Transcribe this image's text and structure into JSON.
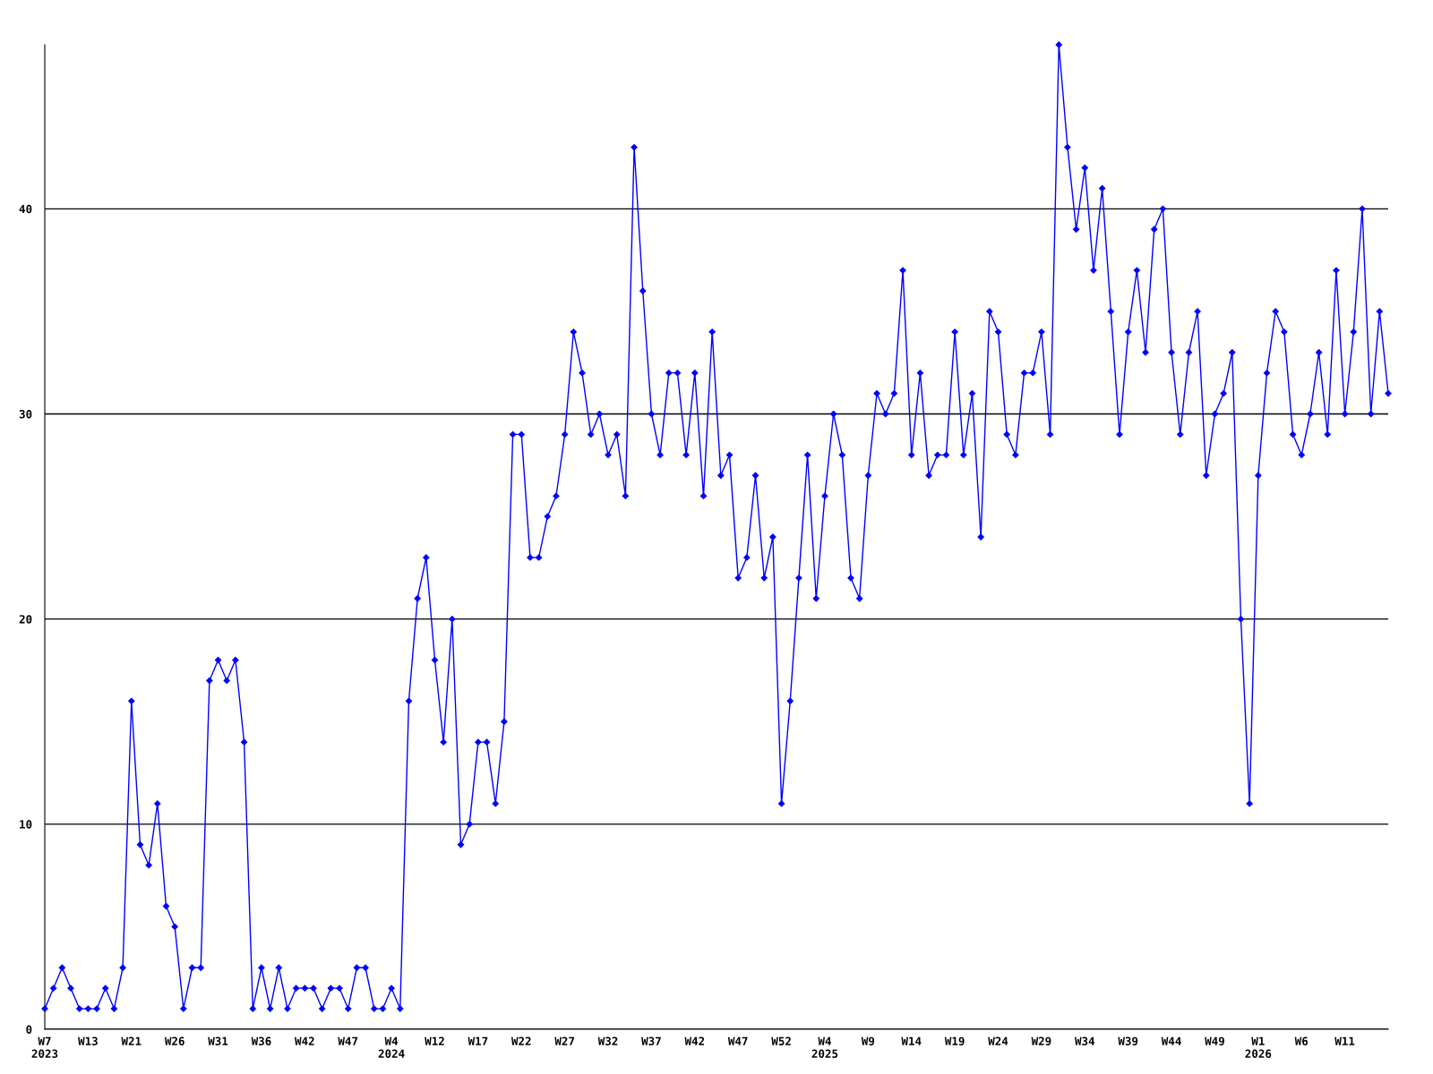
{
  "chart_data": {
    "type": "line",
    "categories": [
      "W7\n2023",
      null,
      null,
      null,
      null,
      "W13",
      null,
      null,
      null,
      null,
      "W21",
      null,
      null,
      null,
      null,
      "W26",
      null,
      null,
      null,
      null,
      "W31",
      null,
      null,
      null,
      null,
      "W36",
      null,
      null,
      null,
      null,
      "W42",
      null,
      null,
      null,
      null,
      "W47",
      null,
      null,
      null,
      null,
      "W4\n2024",
      null,
      null,
      null,
      null,
      "W12",
      null,
      null,
      null,
      null,
      "W17",
      null,
      null,
      null,
      null,
      "W22",
      null,
      null,
      null,
      null,
      "W27",
      null,
      null,
      null,
      null,
      "W32",
      null,
      null,
      null,
      null,
      "W37",
      null,
      null,
      null,
      null,
      "W42",
      null,
      null,
      null,
      null,
      "W47",
      null,
      null,
      null,
      null,
      "W52",
      null,
      null,
      null,
      null,
      "W4\n2025",
      null,
      null,
      null,
      null,
      "W9",
      null,
      null,
      null,
      null,
      "W14",
      null,
      null,
      null,
      null,
      "W19",
      null,
      null,
      null,
      null,
      "W24",
      null,
      null,
      null,
      null,
      "W29",
      null,
      null,
      null,
      null,
      "W34",
      null,
      null,
      null,
      null,
      "W39",
      null,
      null,
      null,
      null,
      "W44",
      null,
      null,
      null,
      null,
      "W49",
      null,
      null,
      null,
      null,
      "W1\n2026",
      null,
      null,
      null,
      null,
      "W6",
      null,
      null,
      null,
      null,
      "W11",
      null,
      null,
      null,
      null,
      null
    ],
    "series": [
      {
        "color": "#0000ff",
        "values": [
          1,
          2,
          3,
          2,
          1,
          1,
          1,
          2,
          1,
          3,
          16,
          9,
          8,
          11,
          6,
          5,
          1,
          3,
          3,
          17,
          18,
          17,
          18,
          14,
          1,
          3,
          1,
          3,
          1,
          2,
          2,
          2,
          1,
          2,
          2,
          1,
          3,
          3,
          1,
          1,
          2,
          1,
          16,
          21,
          23,
          18,
          14,
          20,
          9,
          10,
          14,
          14,
          11,
          15,
          29,
          29,
          23,
          23,
          25,
          26,
          29,
          34,
          32,
          29,
          30,
          28,
          29,
          26,
          43,
          36,
          30,
          28,
          32,
          32,
          28,
          32,
          26,
          34,
          27,
          28,
          22,
          23,
          27,
          22,
          24,
          11,
          16,
          22,
          28,
          21,
          26,
          30,
          28,
          22,
          21,
          27,
          31,
          30,
          31,
          37,
          28,
          32,
          27,
          28,
          28,
          34,
          28,
          31,
          24,
          35,
          34,
          29,
          28,
          32,
          32,
          34,
          29,
          48,
          43,
          39,
          42,
          37,
          41,
          35,
          29,
          34,
          37,
          33,
          39,
          40,
          33,
          29,
          33,
          35,
          27,
          30,
          31,
          33,
          20,
          11,
          27,
          32,
          35,
          34,
          29,
          28,
          30,
          33,
          29,
          37,
          30,
          34,
          40,
          30,
          35,
          31
        ]
      }
    ],
    "ylim": [
      0,
      48
    ],
    "yticks": [
      0,
      10,
      20,
      30,
      40
    ],
    "grid": "y",
    "marker": "diamond",
    "line_style": "solid"
  }
}
